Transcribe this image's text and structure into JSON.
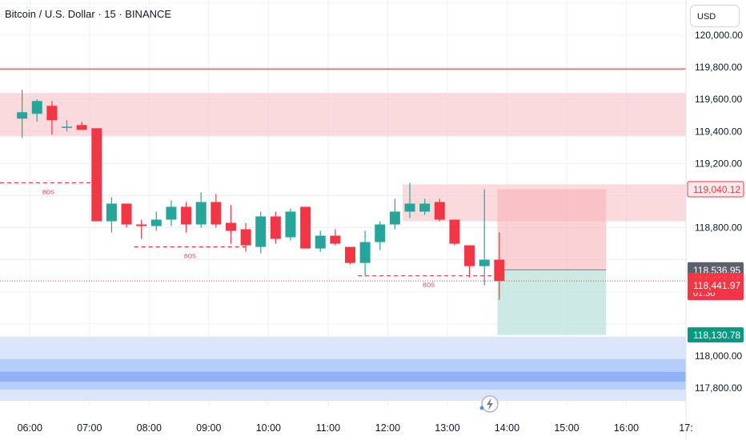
{
  "header": {
    "symbol_title": "Bitcoin / U.S. Dollar · 15 · BINANCE",
    "currency": "USD"
  },
  "colors": {
    "up": "#26a69a",
    "down": "#f23645",
    "supply_zone": "#f7c6cb",
    "demand_zone": "#b5cdfb",
    "target_zone": "#bfe3dc",
    "grid": "#eef0f3",
    "resistance_line": "#e53935"
  },
  "chart_data": {
    "type": "candlestick",
    "title": "Bitcoin / U.S. Dollar · 15 · BINANCE",
    "x_tick_labels": [
      "06:00",
      "07:00",
      "08:00",
      "09:00",
      "10:00",
      "11:00",
      "12:00",
      "13:00",
      "14:00",
      "15:00",
      "16:00",
      "17:"
    ],
    "y_tick_labels": [
      "120,000.00",
      "119,800.00",
      "119,600.00",
      "119,400.00",
      "119,200.00",
      "118,800.00",
      "118,000.00",
      "117,800.00"
    ],
    "ylim": [
      117690,
      120220
    ],
    "grid": true,
    "candles": [
      {
        "t": "05:45",
        "o": 119480,
        "h": 119660,
        "l": 119360,
        "c": 119520
      },
      {
        "t": "06:00",
        "o": 119510,
        "h": 119600,
        "l": 119460,
        "c": 119590
      },
      {
        "t": "06:15",
        "o": 119560,
        "h": 119590,
        "l": 119380,
        "c": 119470
      },
      {
        "t": "06:30",
        "o": 119430,
        "h": 119470,
        "l": 119400,
        "c": 119430
      },
      {
        "t": "06:45",
        "o": 119440,
        "h": 119460,
        "l": 119420,
        "c": 119410
      },
      {
        "t": "07:00",
        "o": 119420,
        "h": 119420,
        "l": 118840,
        "c": 118840
      },
      {
        "t": "07:15",
        "o": 118840,
        "h": 118990,
        "l": 118770,
        "c": 118950
      },
      {
        "t": "07:30",
        "o": 118950,
        "h": 118950,
        "l": 118800,
        "c": 118820
      },
      {
        "t": "07:45",
        "o": 118820,
        "h": 118850,
        "l": 118730,
        "c": 118810
      },
      {
        "t": "08:00",
        "o": 118810,
        "h": 118900,
        "l": 118780,
        "c": 118850
      },
      {
        "t": "08:15",
        "o": 118850,
        "h": 118970,
        "l": 118810,
        "c": 118930
      },
      {
        "t": "08:30",
        "o": 118930,
        "h": 118960,
        "l": 118770,
        "c": 118820
      },
      {
        "t": "08:45",
        "o": 118820,
        "h": 119020,
        "l": 118800,
        "c": 118960
      },
      {
        "t": "09:00",
        "o": 118960,
        "h": 119010,
        "l": 118800,
        "c": 118820
      },
      {
        "t": "09:15",
        "o": 118830,
        "h": 118940,
        "l": 118700,
        "c": 118780
      },
      {
        "t": "09:30",
        "o": 118790,
        "h": 118830,
        "l": 118650,
        "c": 118690
      },
      {
        "t": "09:45",
        "o": 118680,
        "h": 118900,
        "l": 118640,
        "c": 118870
      },
      {
        "t": "10:00",
        "o": 118870,
        "h": 118900,
        "l": 118700,
        "c": 118730
      },
      {
        "t": "10:15",
        "o": 118740,
        "h": 118920,
        "l": 118720,
        "c": 118900
      },
      {
        "t": "10:30",
        "o": 118930,
        "h": 118930,
        "l": 118670,
        "c": 118670
      },
      {
        "t": "10:45",
        "o": 118670,
        "h": 118780,
        "l": 118650,
        "c": 118750
      },
      {
        "t": "11:00",
        "o": 118750,
        "h": 118790,
        "l": 118690,
        "c": 118700
      },
      {
        "t": "11:15",
        "o": 118680,
        "h": 118680,
        "l": 118570,
        "c": 118580
      },
      {
        "t": "11:30",
        "o": 118580,
        "h": 118780,
        "l": 118500,
        "c": 118710
      },
      {
        "t": "11:45",
        "o": 118710,
        "h": 118840,
        "l": 118660,
        "c": 118820
      },
      {
        "t": "12:00",
        "o": 118820,
        "h": 118980,
        "l": 118790,
        "c": 118900
      },
      {
        "t": "12:15",
        "o": 118900,
        "h": 119080,
        "l": 118860,
        "c": 118950
      },
      {
        "t": "12:30",
        "o": 118900,
        "h": 118980,
        "l": 118880,
        "c": 118950
      },
      {
        "t": "12:45",
        "o": 118960,
        "h": 118980,
        "l": 118840,
        "c": 118850
      },
      {
        "t": "13:00",
        "o": 118850,
        "h": 118850,
        "l": 118690,
        "c": 118700
      },
      {
        "t": "13:15",
        "o": 118690,
        "h": 118690,
        "l": 118490,
        "c": 118560
      },
      {
        "t": "13:30",
        "o": 118560,
        "h": 119040,
        "l": 118440,
        "c": 118600
      },
      {
        "t": "13:45",
        "o": 118600,
        "h": 118770,
        "l": 118350,
        "c": 118468
      }
    ],
    "price_labels": [
      {
        "text": "119,040.12",
        "value": 119040.12,
        "style": "red-outline"
      },
      {
        "text": "118,536.95",
        "value": 118536.95,
        "style": "gray"
      },
      {
        "text": "118,468.06",
        "value": 118468.06,
        "style": "red",
        "subtext": "01:30"
      },
      {
        "text": "118,441.97",
        "value": 118441.97,
        "style": "red"
      },
      {
        "text": "118,130.78",
        "value": 118130.78,
        "style": "green"
      }
    ],
    "annotations": [
      {
        "text": "BOS",
        "time": "05:30",
        "price": 119080,
        "to": "07:00"
      },
      {
        "text": "BOS",
        "time": "07:45",
        "price": 118680,
        "to": "09:30"
      },
      {
        "text": "BOS",
        "time": "11:30",
        "price": 118500,
        "to": "13:45"
      }
    ],
    "resistance_line": 119790,
    "zones": [
      {
        "type": "supply",
        "from": "05:30",
        "to": "17:00",
        "top": 119640,
        "bottom": 119370
      },
      {
        "type": "supply",
        "from": "12:15",
        "to": "17:00",
        "top": 119070,
        "bottom": 118840
      },
      {
        "type": "demand",
        "from": "05:30",
        "to": "17:00",
        "top": 118120,
        "bottom": 117720
      }
    ],
    "position": {
      "entry": 118536.95,
      "stop": 119040.12,
      "target": 118130.78,
      "from": "14:00",
      "to": "15:30"
    }
  }
}
